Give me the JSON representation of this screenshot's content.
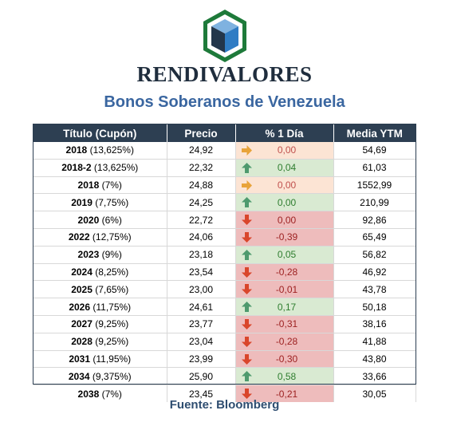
{
  "header": {
    "brand": "RENDIVALORES",
    "title": "Bonos Soberanos de Venezuela"
  },
  "table": {
    "columns": [
      "Título (Cupón)",
      "Precio",
      "% 1 Día",
      "Media YTM"
    ],
    "rows": [
      {
        "year": "2018",
        "coupon": "(13,625%)",
        "price": "24,92",
        "change": "0,00",
        "trend": "flat",
        "ytm": "54,69"
      },
      {
        "year": "2018-2",
        "coupon": "(13,625%)",
        "price": "22,32",
        "change": "0,04",
        "trend": "up",
        "ytm": "61,03"
      },
      {
        "year": "2018",
        "coupon": "(7%)",
        "price": "24,88",
        "change": "0,00",
        "trend": "flat",
        "ytm": "1552,99"
      },
      {
        "year": "2019",
        "coupon": "(7,75%)",
        "price": "24,25",
        "change": "0,00",
        "trend": "upflat",
        "ytm": "210,99"
      },
      {
        "year": "2020",
        "coupon": "(6%)",
        "price": "22,72",
        "change": "0,00",
        "trend": "down",
        "ytm": "92,86"
      },
      {
        "year": "2022",
        "coupon": "(12,75%)",
        "price": "24,06",
        "change": "-0,39",
        "trend": "down",
        "ytm": "65,49"
      },
      {
        "year": "2023",
        "coupon": "(9%)",
        "price": "23,18",
        "change": "0,05",
        "trend": "up",
        "ytm": "56,82"
      },
      {
        "year": "2024",
        "coupon": "(8,25%)",
        "price": "23,54",
        "change": "-0,28",
        "trend": "down",
        "ytm": "46,92"
      },
      {
        "year": "2025",
        "coupon": "(7,65%)",
        "price": "23,00",
        "change": "-0,01",
        "trend": "down",
        "ytm": "43,78"
      },
      {
        "year": "2026",
        "coupon": "(11,75%)",
        "price": "24,61",
        "change": "0,17",
        "trend": "up",
        "ytm": "50,18"
      },
      {
        "year": "2027",
        "coupon": "(9,25%)",
        "price": "23,77",
        "change": "-0,31",
        "trend": "down",
        "ytm": "38,16"
      },
      {
        "year": "2028",
        "coupon": "(9,25%)",
        "price": "23,04",
        "change": "-0,28",
        "trend": "down",
        "ytm": "41,88"
      },
      {
        "year": "2031",
        "coupon": "(11,95%)",
        "price": "23,99",
        "change": "-0,30",
        "trend": "down",
        "ytm": "43,80"
      },
      {
        "year": "2034",
        "coupon": "(9,375%)",
        "price": "25,90",
        "change": "0,58",
        "trend": "up",
        "ytm": "33,66"
      },
      {
        "year": "2038",
        "coupon": "(7%)",
        "price": "23,45",
        "change": "-0,21",
        "trend": "down",
        "ytm": "30,05"
      }
    ]
  },
  "footer": {
    "source": "Fuente: Bloomberg"
  },
  "colors": {
    "header_bg": "#2d3f52",
    "up_bg": "#d9ead2",
    "flat_bg": "#fce4d4",
    "down_bg": "#eebcbc",
    "arrow_up": "#4e9a6e",
    "arrow_flat": "#e8a33a",
    "arrow_down": "#d9462b"
  }
}
